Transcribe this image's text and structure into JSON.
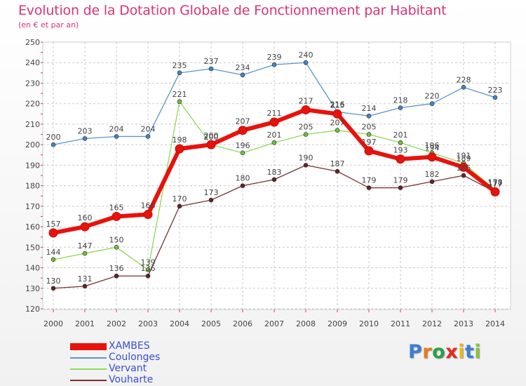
{
  "title": "Evolution de la Dotation Globale de Fonctionnement par Habitant",
  "subtitle": "(en € et par an)",
  "logo": {
    "letters": [
      {
        "ch": "P",
        "color": "#3b7ed6"
      },
      {
        "ch": "r",
        "color": "#e87a1c"
      },
      {
        "ch": "o",
        "color": "#2aa048"
      },
      {
        "ch": "x",
        "color": "#e82a20"
      },
      {
        "ch": "i",
        "color": "#e8b81c"
      },
      {
        "ch": "t",
        "color": "#3b7ed6"
      },
      {
        "ch": "i",
        "color": "#8ac23c"
      }
    ]
  },
  "chart_data": {
    "type": "line",
    "x": [
      "2000",
      "2001",
      "2002",
      "2003",
      "2004",
      "2005",
      "2006",
      "2007",
      "2008",
      "2009",
      "2010",
      "2011",
      "2012",
      "2013",
      "2014"
    ],
    "ylim": [
      120,
      250
    ],
    "yticks": [
      120,
      130,
      140,
      150,
      160,
      170,
      180,
      190,
      200,
      210,
      220,
      230,
      240,
      250
    ],
    "grid": true,
    "legend_position": "bottom-left",
    "series": [
      {
        "name": "Coulonges",
        "color": "#5b96cc",
        "marker": "#3f86c7",
        "width": 1.3,
        "r": 3,
        "values": [
          200,
          203,
          204,
          204,
          235,
          237,
          234,
          239,
          240,
          216,
          214,
          218,
          220,
          228,
          223
        ]
      },
      {
        "name": "Vervant",
        "color": "#8fd75a",
        "marker": "#6cc23c",
        "width": 1.3,
        "r": 3,
        "values": [
          144,
          147,
          150,
          139,
          221,
          200,
          196,
          201,
          205,
          207,
          205,
          201,
          196,
          191,
          178
        ]
      },
      {
        "name": "Vouharte",
        "color": "#7a3030",
        "marker": "#642424",
        "width": 1.3,
        "r": 3,
        "values": [
          130,
          131,
          136,
          136,
          170,
          173,
          180,
          183,
          190,
          187,
          179,
          179,
          182,
          185,
          177
        ]
      },
      {
        "name": "XAMBES",
        "color": "#e8120c",
        "marker": "#e8120c",
        "width": 6,
        "r": 6,
        "values": [
          157,
          160,
          165,
          166,
          198,
          200,
          207,
          211,
          217,
          215,
          197,
          193,
          194,
          189,
          177
        ]
      }
    ],
    "legend_order": [
      "XAMBES",
      "Coulonges",
      "Vervant",
      "Vouharte"
    ]
  }
}
